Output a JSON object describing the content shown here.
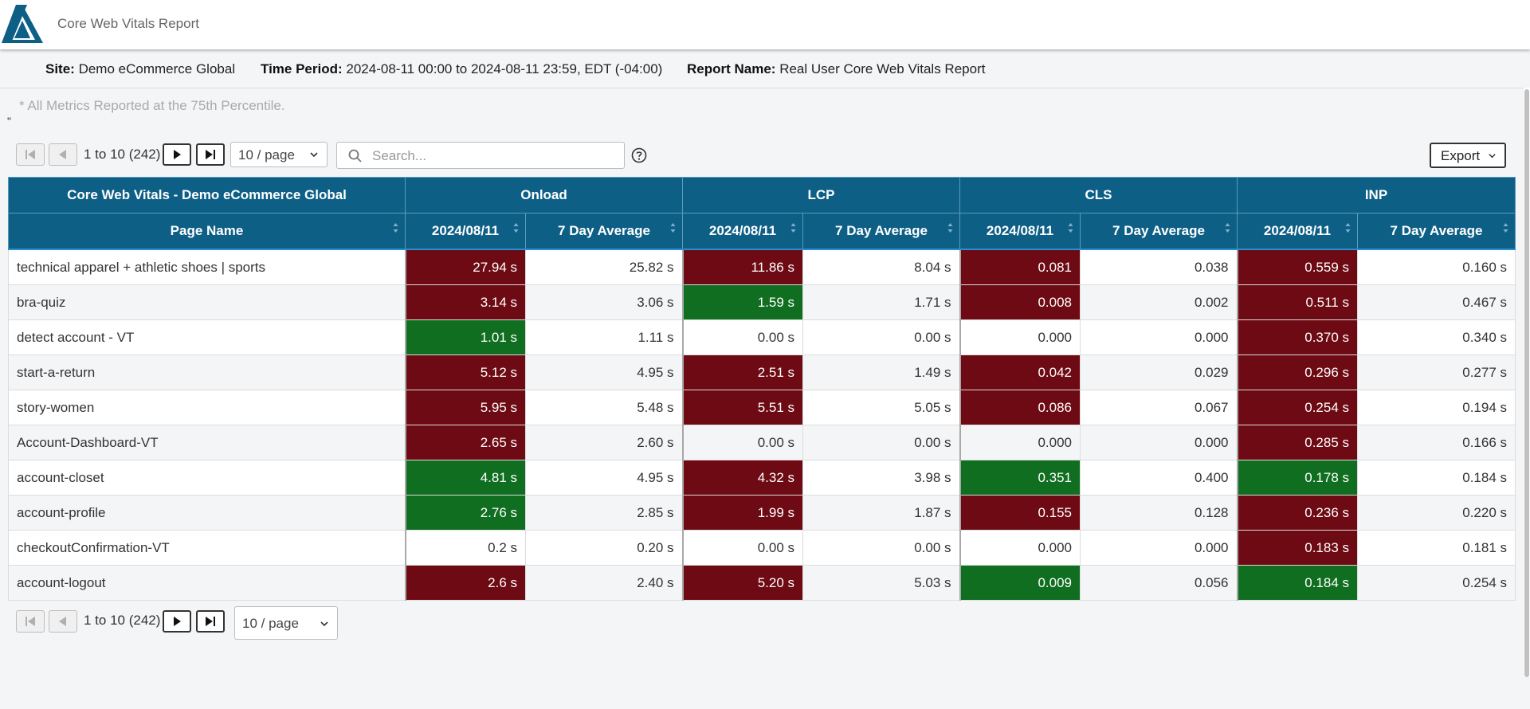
{
  "app": {
    "title": "Core Web Vitals Report"
  },
  "info": {
    "site_label": "Site:",
    "site_value": "Demo eCommerce Global",
    "period_label": "Time Period:",
    "period_value": "2024-08-11 00:00 to 2024-08-11 23:59, EDT (-04:00)",
    "report_label": "Report Name:",
    "report_value": "Real User Core Web Vitals Report"
  },
  "note": "* All Metrics Reported at the 75th Percentile.",
  "stray_mark": "\"",
  "pager": {
    "range_text": "1 to 10 (242)",
    "page_size": "10 / page"
  },
  "search": {
    "placeholder": "Search..."
  },
  "export_label": "Export",
  "colors": {
    "header": "#0e5f86",
    "bad": "#6d0a13",
    "good": "#0f6e1f"
  },
  "table": {
    "group_headers": [
      "Core Web Vitals - Demo eCommerce Global",
      "Onload",
      "LCP",
      "CLS",
      "INP"
    ],
    "sub_headers": [
      "Page Name",
      "2024/08/11",
      "7 Day Average",
      "2024/08/11",
      "7 Day Average",
      "2024/08/11",
      "7 Day Average",
      "2024/08/11",
      "7 Day Average"
    ],
    "rows": [
      {
        "name": "technical apparel + athletic shoes | sports",
        "cells": [
          {
            "v": "27.94 s",
            "s": "bad"
          },
          {
            "v": "25.82 s",
            "s": ""
          },
          {
            "v": "11.86 s",
            "s": "bad"
          },
          {
            "v": "8.04 s",
            "s": ""
          },
          {
            "v": "0.081",
            "s": "bad"
          },
          {
            "v": "0.038",
            "s": ""
          },
          {
            "v": "0.559 s",
            "s": "bad"
          },
          {
            "v": "0.160 s",
            "s": ""
          }
        ]
      },
      {
        "name": "bra-quiz",
        "cells": [
          {
            "v": "3.14 s",
            "s": "bad"
          },
          {
            "v": "3.06 s",
            "s": ""
          },
          {
            "v": "1.59 s",
            "s": "good"
          },
          {
            "v": "1.71 s",
            "s": ""
          },
          {
            "v": "0.008",
            "s": "bad"
          },
          {
            "v": "0.002",
            "s": ""
          },
          {
            "v": "0.511 s",
            "s": "bad"
          },
          {
            "v": "0.467 s",
            "s": ""
          }
        ]
      },
      {
        "name": "detect account - VT",
        "cells": [
          {
            "v": "1.01 s",
            "s": "good"
          },
          {
            "v": "1.11 s",
            "s": ""
          },
          {
            "v": "0.00 s",
            "s": ""
          },
          {
            "v": "0.00 s",
            "s": ""
          },
          {
            "v": "0.000",
            "s": ""
          },
          {
            "v": "0.000",
            "s": ""
          },
          {
            "v": "0.370 s",
            "s": "bad"
          },
          {
            "v": "0.340 s",
            "s": ""
          }
        ]
      },
      {
        "name": "start-a-return",
        "cells": [
          {
            "v": "5.12 s",
            "s": "bad"
          },
          {
            "v": "4.95 s",
            "s": ""
          },
          {
            "v": "2.51 s",
            "s": "bad"
          },
          {
            "v": "1.49 s",
            "s": ""
          },
          {
            "v": "0.042",
            "s": "bad"
          },
          {
            "v": "0.029",
            "s": ""
          },
          {
            "v": "0.296 s",
            "s": "bad"
          },
          {
            "v": "0.277 s",
            "s": ""
          }
        ]
      },
      {
        "name": "story-women",
        "cells": [
          {
            "v": "5.95 s",
            "s": "bad"
          },
          {
            "v": "5.48 s",
            "s": ""
          },
          {
            "v": "5.51 s",
            "s": "bad"
          },
          {
            "v": "5.05 s",
            "s": ""
          },
          {
            "v": "0.086",
            "s": "bad"
          },
          {
            "v": "0.067",
            "s": ""
          },
          {
            "v": "0.254 s",
            "s": "bad"
          },
          {
            "v": "0.194 s",
            "s": ""
          }
        ]
      },
      {
        "name": "Account-Dashboard-VT",
        "cells": [
          {
            "v": "2.65 s",
            "s": "bad"
          },
          {
            "v": "2.60 s",
            "s": ""
          },
          {
            "v": "0.00 s",
            "s": ""
          },
          {
            "v": "0.00 s",
            "s": ""
          },
          {
            "v": "0.000",
            "s": ""
          },
          {
            "v": "0.000",
            "s": ""
          },
          {
            "v": "0.285 s",
            "s": "bad"
          },
          {
            "v": "0.166 s",
            "s": ""
          }
        ]
      },
      {
        "name": "account-closet",
        "cells": [
          {
            "v": "4.81 s",
            "s": "good"
          },
          {
            "v": "4.95 s",
            "s": ""
          },
          {
            "v": "4.32 s",
            "s": "bad"
          },
          {
            "v": "3.98 s",
            "s": ""
          },
          {
            "v": "0.351",
            "s": "good"
          },
          {
            "v": "0.400",
            "s": ""
          },
          {
            "v": "0.178 s",
            "s": "good"
          },
          {
            "v": "0.184 s",
            "s": ""
          }
        ]
      },
      {
        "name": "account-profile",
        "cells": [
          {
            "v": "2.76 s",
            "s": "good"
          },
          {
            "v": "2.85 s",
            "s": ""
          },
          {
            "v": "1.99 s",
            "s": "bad"
          },
          {
            "v": "1.87 s",
            "s": ""
          },
          {
            "v": "0.155",
            "s": "bad"
          },
          {
            "v": "0.128",
            "s": ""
          },
          {
            "v": "0.236 s",
            "s": "bad"
          },
          {
            "v": "0.220 s",
            "s": ""
          }
        ]
      },
      {
        "name": "checkoutConfirmation-VT",
        "cells": [
          {
            "v": "0.2 s",
            "s": ""
          },
          {
            "v": "0.20 s",
            "s": ""
          },
          {
            "v": "0.00 s",
            "s": ""
          },
          {
            "v": "0.00 s",
            "s": ""
          },
          {
            "v": "0.000",
            "s": ""
          },
          {
            "v": "0.000",
            "s": ""
          },
          {
            "v": "0.183 s",
            "s": "bad"
          },
          {
            "v": "0.181 s",
            "s": ""
          }
        ]
      },
      {
        "name": "account-logout",
        "cells": [
          {
            "v": "2.6 s",
            "s": "bad"
          },
          {
            "v": "2.40 s",
            "s": ""
          },
          {
            "v": "5.20 s",
            "s": "bad"
          },
          {
            "v": "5.03 s",
            "s": ""
          },
          {
            "v": "0.009",
            "s": "good"
          },
          {
            "v": "0.056",
            "s": ""
          },
          {
            "v": "0.184 s",
            "s": "good"
          },
          {
            "v": "0.254 s",
            "s": ""
          }
        ]
      }
    ]
  }
}
